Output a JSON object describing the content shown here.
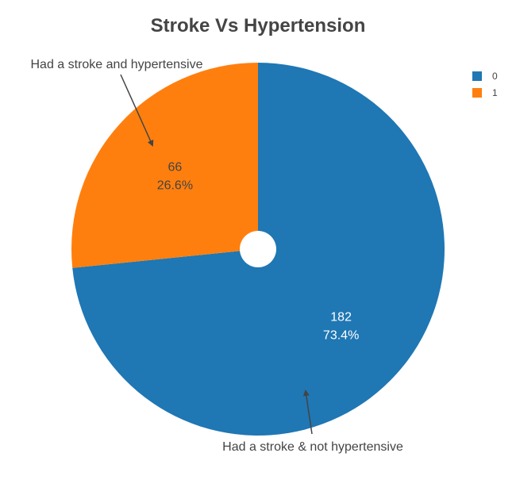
{
  "chart_data": {
    "type": "pie",
    "title": "Stroke Vs Hypertension",
    "hole": "small",
    "slices": [
      {
        "label": "0",
        "value": 182,
        "percent": "73.4%",
        "color": "#1f77b4",
        "text_color": "#ffffff"
      },
      {
        "label": "1",
        "value": 66,
        "percent": "26.6%",
        "color": "#ff7f0e",
        "text_color": "#444444"
      }
    ],
    "legend": {
      "placement": "top-right",
      "entries": [
        "0",
        "1"
      ]
    },
    "annotations": [
      {
        "text": "Had a stroke and hypertensive",
        "points_to": "1"
      },
      {
        "text": "Had a stroke & not hypertensive",
        "points_to": "0"
      }
    ]
  }
}
